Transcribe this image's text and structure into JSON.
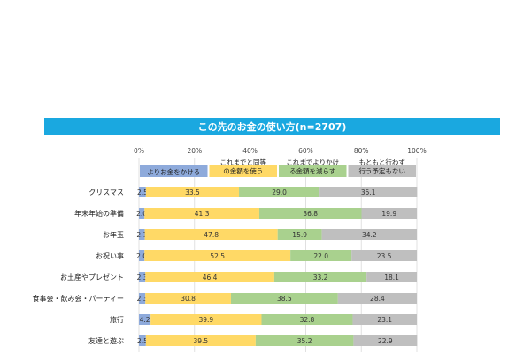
{
  "chart_data": {
    "type": "bar",
    "stacked": "horizontal-100%",
    "title": "この先のお金の使い方(n=2707)",
    "xlim": [
      0,
      100
    ],
    "x_ticks": [
      "0%",
      "20%",
      "40%",
      "60%",
      "80%",
      "100%"
    ],
    "grid": true,
    "legend_position": "top",
    "categories": [
      "クリスマス",
      "年末年始の準備",
      "お年玉",
      "お祝い事",
      "お土産やプレゼント",
      "食事会・飲み会・パーティー",
      "旅行",
      "友達と遊ぶ"
    ],
    "series": [
      {
        "name": "よりお金をかける",
        "color": "#8eaadb",
        "values": [
          2.5,
          2.0,
          2.1,
          2.0,
          2.3,
          2.3,
          4.2,
          2.5
        ]
      },
      {
        "name": "これまでと同等の金額を使う",
        "color": "#ffd966",
        "values": [
          33.5,
          41.3,
          47.8,
          52.5,
          46.4,
          30.8,
          39.9,
          39.5
        ]
      },
      {
        "name": "これまでよりかける金額を減らす",
        "color": "#a9d18e",
        "values": [
          29.0,
          36.8,
          15.9,
          22.0,
          33.2,
          38.5,
          32.8,
          35.2
        ]
      },
      {
        "name": "もともと行わず行う予定もない",
        "color": "#bfbfbf",
        "values": [
          35.1,
          19.9,
          34.2,
          23.5,
          18.1,
          28.4,
          23.1,
          22.9
        ]
      }
    ],
    "legend_lines": [
      [
        "よりお金をかける"
      ],
      [
        "これまでと同等",
        "の金額を使う"
      ],
      [
        "これまでよりかけ",
        "る金額を減らす"
      ],
      [
        "もともと行わず",
        "行う予定もない"
      ]
    ]
  }
}
